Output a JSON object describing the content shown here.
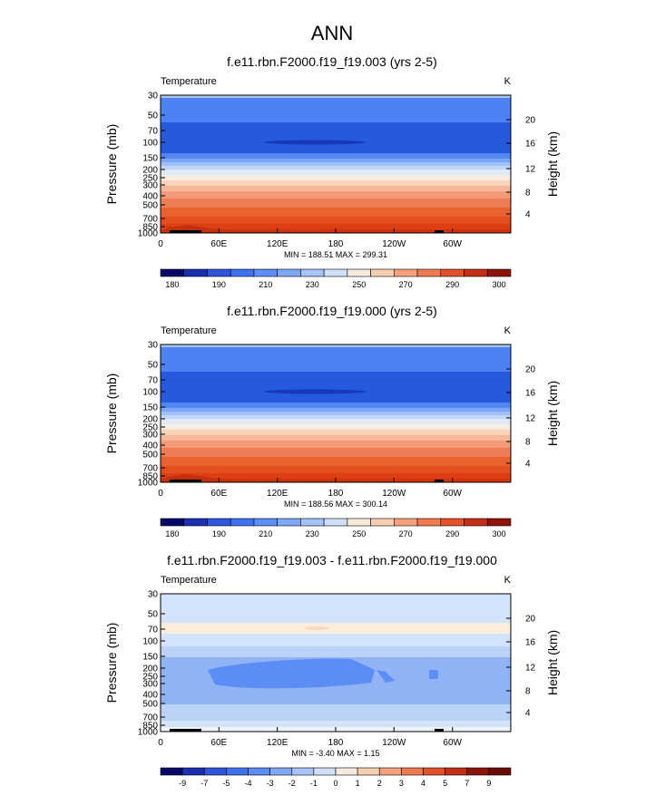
{
  "page_title": "ANN",
  "chart_data": [
    {
      "type": "heatmap",
      "title": "f.e11.rbn.F2000.f19_f19.003 (yrs 2-5)",
      "left_label": "Temperature",
      "right_label": "K",
      "xlabel": "",
      "ylabel": "Pressure (mb)",
      "y2label": "Height (km)",
      "x_ticks": [
        "0",
        "60E",
        "120E",
        "180",
        "120W",
        "60W"
      ],
      "y_ticks": [
        "30",
        "50",
        "70",
        "100",
        "150",
        "200",
        "250",
        "300",
        "400",
        "500",
        "700",
        "850",
        "1000"
      ],
      "y2_ticks": [
        "20",
        "16",
        "12",
        "8",
        "4"
      ],
      "stats": "MIN = 188.51  MAX = 299.31",
      "colorbar_ticks": [
        "180",
        "190",
        "210",
        "230",
        "250",
        "270",
        "290",
        "300"
      ],
      "colorbar_colors": [
        "#08086b",
        "#1a2fb0",
        "#2f55dc",
        "#3f72f0",
        "#5b8ff5",
        "#7fa9f7",
        "#a6c3f8",
        "#cfdff7",
        "#f6eadf",
        "#f8cdb0",
        "#f5a27c",
        "#ef7a4f",
        "#e4502a",
        "#c42f16",
        "#8f1408"
      ]
    },
    {
      "type": "heatmap",
      "title": "f.e11.rbn.F2000.f19_f19.000 (yrs 2-5)",
      "left_label": "Temperature",
      "right_label": "K",
      "xlabel": "",
      "ylabel": "Pressure (mb)",
      "y2label": "Height (km)",
      "x_ticks": [
        "0",
        "60E",
        "120E",
        "180",
        "120W",
        "60W"
      ],
      "y_ticks": [
        "30",
        "50",
        "70",
        "100",
        "150",
        "200",
        "250",
        "300",
        "400",
        "500",
        "700",
        "850",
        "1000"
      ],
      "y2_ticks": [
        "20",
        "16",
        "12",
        "8",
        "4"
      ],
      "stats": "MIN = 188.56  MAX = 300.14",
      "colorbar_ticks": [
        "180",
        "190",
        "210",
        "230",
        "250",
        "270",
        "290",
        "300"
      ],
      "colorbar_colors": [
        "#08086b",
        "#1a2fb0",
        "#2f55dc",
        "#3f72f0",
        "#5b8ff5",
        "#7fa9f7",
        "#a6c3f8",
        "#cfdff7",
        "#f6eadf",
        "#f8cdb0",
        "#f5a27c",
        "#ef7a4f",
        "#e4502a",
        "#c42f16",
        "#8f1408"
      ]
    },
    {
      "type": "heatmap",
      "title": "f.e11.rbn.F2000.f19_f19.003 - f.e11.rbn.F2000.f19_f19.000",
      "left_label": "Temperature",
      "right_label": "K",
      "xlabel": "",
      "ylabel": "Pressure (mb)",
      "y2label": "Height (km)",
      "x_ticks": [
        "0",
        "60E",
        "120E",
        "180",
        "120W",
        "60W"
      ],
      "y_ticks": [
        "30",
        "50",
        "70",
        "100",
        "150",
        "200",
        "250",
        "300",
        "400",
        "500",
        "700",
        "850",
        "1000"
      ],
      "y2_ticks": [
        "20",
        "16",
        "12",
        "8",
        "4"
      ],
      "stats": "MIN = -3.40  MAX =  1.15",
      "colorbar_ticks": [
        "-9",
        "-7",
        "-5",
        "-4",
        "-3",
        "-2",
        "-1",
        "0",
        "1",
        "2",
        "3",
        "4",
        "5",
        "7",
        "9"
      ],
      "colorbar_colors": [
        "#08086b",
        "#1a2fb0",
        "#2f55dc",
        "#3f72f0",
        "#5b8ff5",
        "#7fa9f7",
        "#a6c3f8",
        "#cfdff7",
        "#f6eadf",
        "#f8cdb0",
        "#f5a27c",
        "#ef7a4f",
        "#e4502a",
        "#c42f16",
        "#8f1408",
        "#6a0a04"
      ]
    }
  ]
}
